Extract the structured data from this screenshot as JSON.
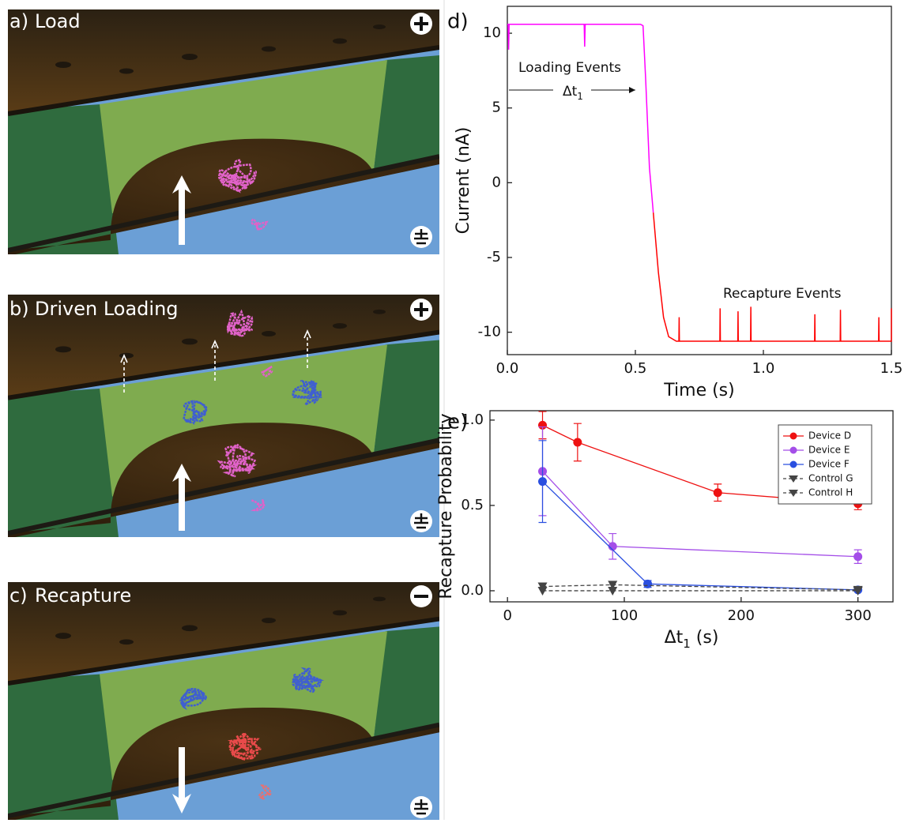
{
  "panels": [
    {
      "letter": "a)",
      "label": "Load"
    },
    {
      "letter": "b)",
      "label": "Driven Loading"
    },
    {
      "letter": "c)",
      "label": "Recapture"
    }
  ],
  "chart_data": [
    {
      "type": "line",
      "letter": "d)",
      "x_label": "Time (s)",
      "y_label": "Current (nA)",
      "annotations": [
        "Loading Events",
        "Δt",
        "1",
        "Recapture Events"
      ],
      "xlim": [
        0,
        1.5
      ],
      "ylim": [
        -11.5,
        11.8
      ],
      "xticks": [
        {
          "value": 0,
          "label": "0.0"
        },
        {
          "value": 0.5,
          "label": "0.5"
        },
        {
          "value": 1,
          "label": "1.0"
        },
        {
          "value": 1.5,
          "label": "1.5"
        }
      ],
      "yticks": [
        -10,
        -5,
        0,
        5,
        10
      ],
      "series": [
        {
          "color": "#ff00ff",
          "x": [
            0,
            0.003,
            0.005,
            0.007,
            0.3,
            0.302,
            0.304,
            0.52,
            0.53,
            0.54,
            0.55,
            0.555,
            0.56,
            0.57
          ],
          "values": [
            10.6,
            10.6,
            8.9,
            10.6,
            10.6,
            9.1,
            10.6,
            10.6,
            10.5,
            7,
            3,
            1,
            0,
            -2
          ]
        },
        {
          "color": "#ff0000",
          "x": [
            0.57,
            0.59,
            0.61,
            0.63,
            0.66,
            0.67,
            0.671,
            0.672,
            0.83,
            0.831,
            0.832,
            0.9,
            0.901,
            0.902,
            0.95,
            0.951,
            0.952,
            1.2,
            1.201,
            1.202,
            1.3,
            1.301,
            1.302,
            1.45,
            1.451,
            1.452,
            1.5,
            1.5
          ],
          "values": [
            -2,
            -6,
            -9,
            -10.3,
            -10.6,
            -10.6,
            -9,
            -10.6,
            -10.6,
            -8.4,
            -10.6,
            -10.6,
            -8.6,
            -10.6,
            -10.6,
            -8.3,
            -10.6,
            -10.6,
            -8.8,
            -10.6,
            -10.6,
            -8.5,
            -10.6,
            -10.6,
            -9,
            -10.6,
            -10.6,
            -8.4
          ]
        }
      ]
    },
    {
      "type": "errorline",
      "letter": "e)",
      "x_label": [
        "Δt",
        "1",
        " (s)"
      ],
      "y_label": "Recapture Probability",
      "xlim": [
        -15,
        330
      ],
      "ylim": [
        -0.065,
        1.055
      ],
      "xticks": [
        0,
        100,
        200,
        300
      ],
      "yticks": [
        {
          "value": 0,
          "label": "0.0"
        },
        {
          "value": 0.5,
          "label": "0.5"
        },
        {
          "value": 1,
          "label": "1.0"
        }
      ],
      "legend": "top-right",
      "series": [
        {
          "name": "Device D",
          "color": "#ee1111",
          "marker": "circle",
          "dashed": false,
          "x": [
            30,
            60,
            180,
            300
          ],
          "values": [
            0.97,
            0.87,
            0.575,
            0.51
          ],
          "errors": [
            0.08,
            0.11,
            0.05,
            0.035
          ]
        },
        {
          "name": "Device E",
          "color": "#a44ee8",
          "marker": "circle",
          "dashed": false,
          "x": [
            30,
            90,
            300
          ],
          "values": [
            0.7,
            0.26,
            0.2
          ],
          "errors": [
            0.26,
            0.075,
            0.04
          ]
        },
        {
          "name": "Device F",
          "color": "#2a4fe0",
          "marker": "circle",
          "dashed": false,
          "x": [
            30,
            120,
            300
          ],
          "values": [
            0.64,
            0.04,
            0.005
          ],
          "errors": [
            0.24,
            0.02,
            0.005
          ]
        },
        {
          "name": "Control G",
          "color": "#444444",
          "marker": "triangle-down",
          "dashed": true,
          "x": [
            30,
            90,
            300
          ],
          "values": [
            0.025,
            0.035,
            0.005
          ],
          "errors": [
            0,
            0,
            0
          ]
        },
        {
          "name": "Control H",
          "color": "#444444",
          "marker": "triangle-down",
          "dashed": true,
          "x": [
            30,
            90,
            300
          ],
          "values": [
            0,
            0,
            0
          ],
          "errors": [
            0,
            0,
            0
          ]
        }
      ]
    }
  ]
}
